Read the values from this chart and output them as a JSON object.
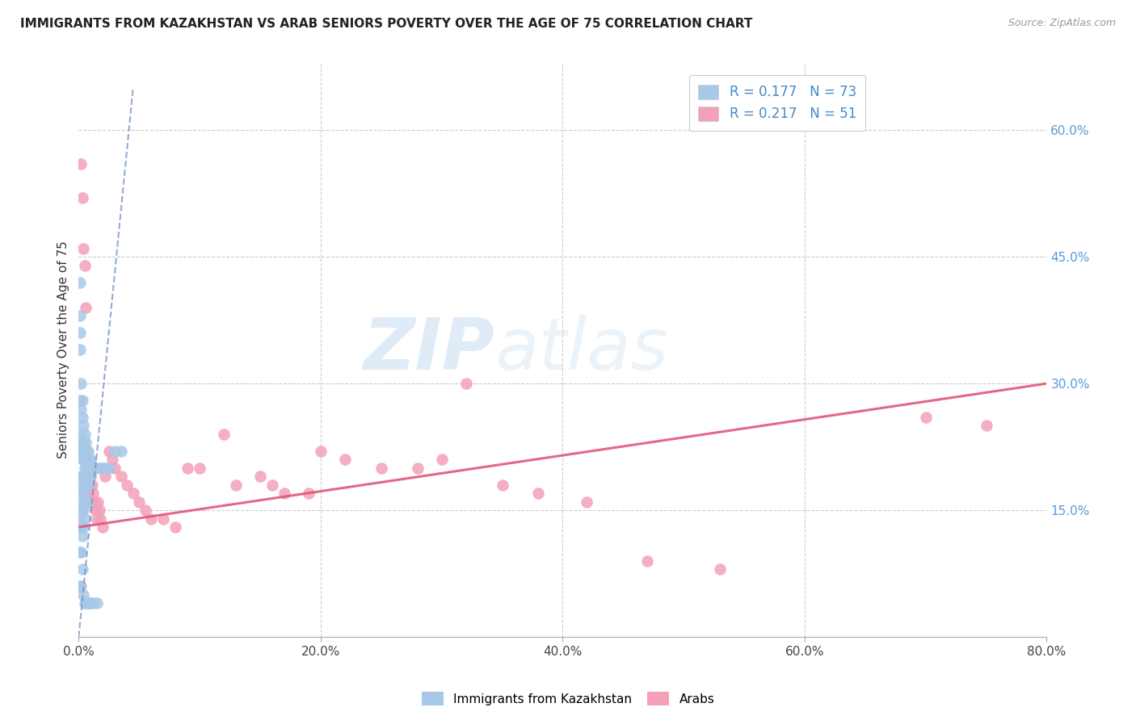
{
  "title": "IMMIGRANTS FROM KAZAKHSTAN VS ARAB SENIORS POVERTY OVER THE AGE OF 75 CORRELATION CHART",
  "source": "Source: ZipAtlas.com",
  "ylabel": "Seniors Poverty Over the Age of 75",
  "xlim": [
    0,
    0.8
  ],
  "ylim": [
    0,
    0.68
  ],
  "xticks": [
    0.0,
    0.2,
    0.4,
    0.6,
    0.8
  ],
  "xticklabels": [
    "0.0%",
    "20.0%",
    "40.0%",
    "60.0%",
    "80.0%"
  ],
  "yticks_right": [
    0.15,
    0.3,
    0.45,
    0.6
  ],
  "ytick_labels_right": [
    "15.0%",
    "30.0%",
    "45.0%",
    "60.0%"
  ],
  "legend_R1": "R = 0.177",
  "legend_N1": "N = 73",
  "legend_R2": "R = 0.217",
  "legend_N2": "N = 51",
  "kazakhstan_color": "#a8c8e8",
  "arab_color": "#f4a0b8",
  "kazakhstan_line_color": "#7090c0",
  "arab_line_color": "#e05878",
  "watermark_zip": "ZIP",
  "watermark_atlas": "atlas",
  "background_color": "#ffffff",
  "kaz_line_x0": 0.0,
  "kaz_line_y0": 0.0,
  "kaz_line_x1": 0.045,
  "kaz_line_y1": 0.65,
  "arab_line_x0": 0.0,
  "arab_line_y0": 0.13,
  "arab_line_x1": 0.8,
  "arab_line_y1": 0.3,
  "kazakhstan_x": [
    0.001,
    0.001,
    0.001,
    0.001,
    0.001,
    0.001,
    0.001,
    0.001,
    0.002,
    0.002,
    0.002,
    0.002,
    0.002,
    0.002,
    0.002,
    0.002,
    0.003,
    0.003,
    0.003,
    0.003,
    0.003,
    0.003,
    0.003,
    0.003,
    0.004,
    0.004,
    0.004,
    0.004,
    0.004,
    0.004,
    0.004,
    0.004,
    0.005,
    0.005,
    0.005,
    0.005,
    0.005,
    0.005,
    0.005,
    0.006,
    0.006,
    0.006,
    0.006,
    0.006,
    0.006,
    0.007,
    0.007,
    0.007,
    0.007,
    0.008,
    0.008,
    0.008,
    0.008,
    0.009,
    0.009,
    0.009,
    0.01,
    0.01,
    0.01,
    0.012,
    0.012,
    0.015,
    0.015,
    0.018,
    0.02,
    0.022,
    0.025,
    0.03,
    0.035,
    0.001,
    0.001,
    0.002,
    0.003
  ],
  "kazakhstan_y": [
    0.38,
    0.34,
    0.28,
    0.22,
    0.18,
    0.14,
    0.1,
    0.06,
    0.27,
    0.24,
    0.22,
    0.19,
    0.16,
    0.13,
    0.1,
    0.06,
    0.26,
    0.23,
    0.21,
    0.19,
    0.17,
    0.15,
    0.12,
    0.08,
    0.25,
    0.23,
    0.21,
    0.19,
    0.17,
    0.15,
    0.13,
    0.05,
    0.24,
    0.22,
    0.2,
    0.18,
    0.16,
    0.14,
    0.04,
    0.23,
    0.21,
    0.2,
    0.18,
    0.16,
    0.04,
    0.22,
    0.2,
    0.18,
    0.16,
    0.22,
    0.2,
    0.18,
    0.04,
    0.21,
    0.19,
    0.04,
    0.21,
    0.19,
    0.04,
    0.2,
    0.04,
    0.2,
    0.04,
    0.2,
    0.2,
    0.2,
    0.2,
    0.22,
    0.22,
    0.42,
    0.36,
    0.3,
    0.28
  ],
  "arab_x": [
    0.002,
    0.003,
    0.004,
    0.005,
    0.006,
    0.007,
    0.008,
    0.009,
    0.01,
    0.011,
    0.012,
    0.013,
    0.014,
    0.015,
    0.016,
    0.017,
    0.018,
    0.02,
    0.022,
    0.025,
    0.028,
    0.03,
    0.035,
    0.04,
    0.045,
    0.05,
    0.055,
    0.06,
    0.07,
    0.08,
    0.09,
    0.1,
    0.12,
    0.13,
    0.15,
    0.16,
    0.17,
    0.19,
    0.2,
    0.22,
    0.25,
    0.28,
    0.3,
    0.32,
    0.35,
    0.38,
    0.42,
    0.47,
    0.53,
    0.7,
    0.75
  ],
  "arab_y": [
    0.56,
    0.52,
    0.46,
    0.44,
    0.39,
    0.17,
    0.17,
    0.16,
    0.19,
    0.18,
    0.17,
    0.16,
    0.15,
    0.14,
    0.16,
    0.15,
    0.14,
    0.13,
    0.19,
    0.22,
    0.21,
    0.2,
    0.19,
    0.18,
    0.17,
    0.16,
    0.15,
    0.14,
    0.14,
    0.13,
    0.2,
    0.2,
    0.24,
    0.18,
    0.19,
    0.18,
    0.17,
    0.17,
    0.22,
    0.21,
    0.2,
    0.2,
    0.21,
    0.3,
    0.18,
    0.17,
    0.16,
    0.09,
    0.08,
    0.26,
    0.25
  ]
}
